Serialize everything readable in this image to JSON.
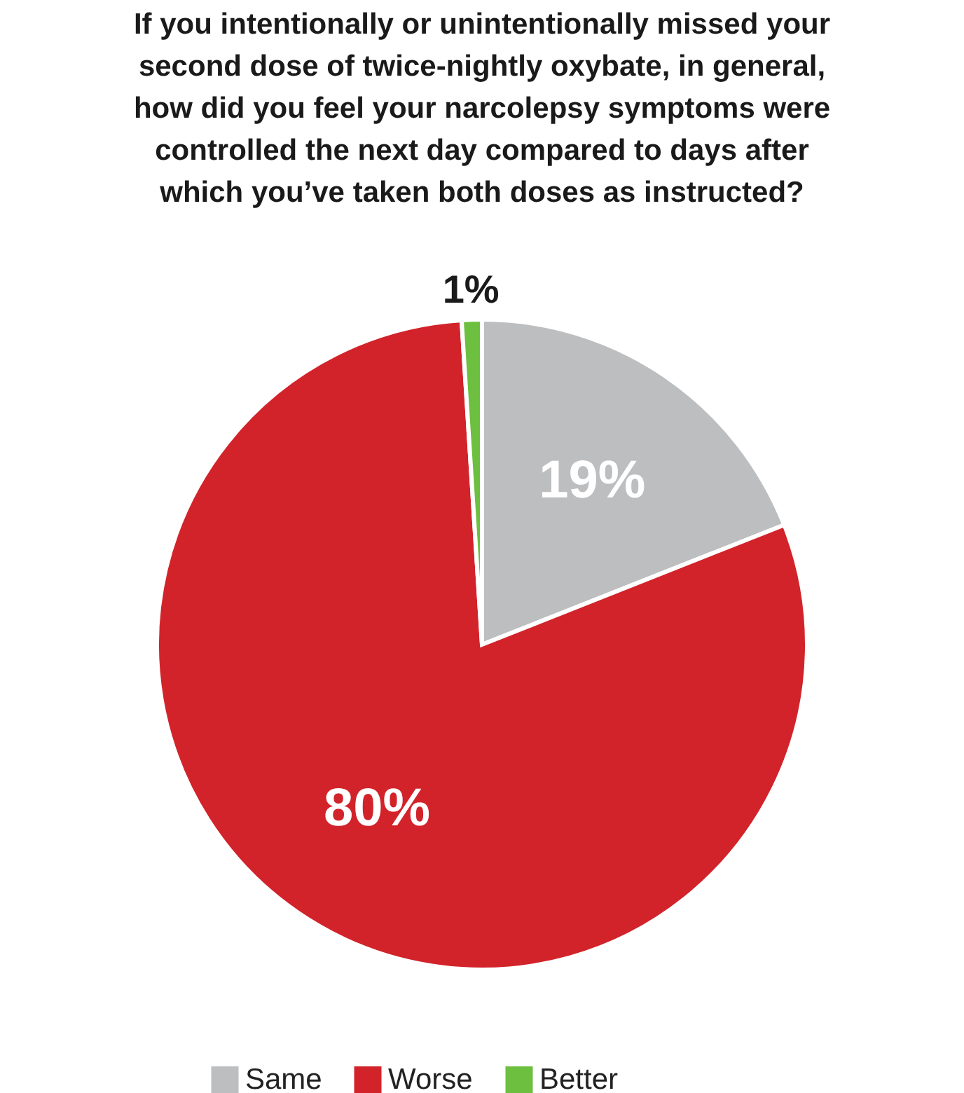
{
  "chart_data": {
    "type": "pie",
    "title": "If you intentionally or unintentionally missed your second dose of twice-nightly oxybate, in general, how did you feel your narcolepsy symptoms were controlled the next day compared to days after which you’ve taken both doses as instructed?",
    "categories": [
      "Same",
      "Worse",
      "Better"
    ],
    "values": [
      19,
      80,
      1
    ],
    "colors": [
      "#bcbec0",
      "#d2232a",
      "#6cbf3f"
    ],
    "value_labels": [
      "19%",
      "80%",
      "1%"
    ],
    "legend": "bottom"
  }
}
